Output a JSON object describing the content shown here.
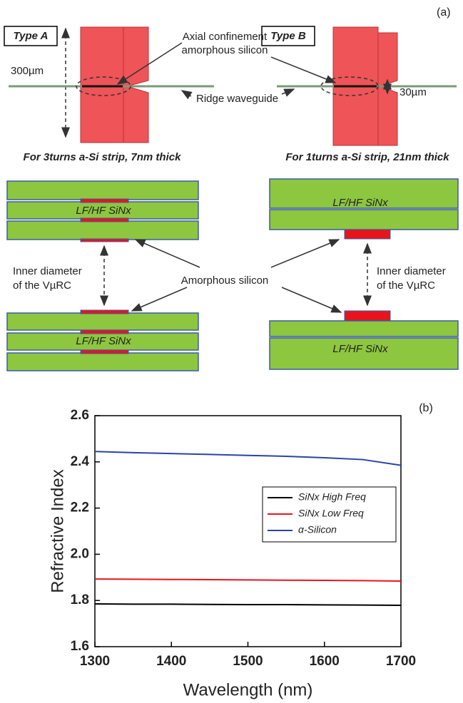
{
  "panel_a": {
    "label": "(a)",
    "type_a": "Type A",
    "type_b": "Type B",
    "dim_a": "300µm",
    "dim_b": "30µm",
    "axial": [
      "Axial confinement",
      "amorphous silicon"
    ],
    "ridge": "Ridge waveguide",
    "caption_a": "For 3turns a-Si strip, 7nm thick",
    "caption_b": "For 1turns a-Si strip, 21nm thick",
    "layer": "LF/HF SiNx",
    "inner": [
      "Inner diameter",
      "of the VµRC"
    ],
    "amorphous": "Amorphous silicon"
  },
  "chart_data": {
    "type": "line",
    "label": "(b)",
    "x_label": "Wavelength (nm)",
    "y_label": "Refractive Index",
    "x": [
      1300,
      1350,
      1400,
      1450,
      1500,
      1550,
      1600,
      1650,
      1700
    ],
    "series": [
      {
        "name": "SiNx High Freq",
        "color": "#000000",
        "values": [
          1.785,
          1.784,
          1.784,
          1.783,
          1.782,
          1.782,
          1.781,
          1.78,
          1.779
        ]
      },
      {
        "name": "SiNx Low Freq",
        "color": "#e8141c",
        "values": [
          1.893,
          1.892,
          1.891,
          1.89,
          1.889,
          1.888,
          1.887,
          1.886,
          1.884
        ]
      },
      {
        "name": "α-Silicon",
        "color": "#2a43a6",
        "values": [
          2.445,
          2.44,
          2.436,
          2.432,
          2.428,
          2.424,
          2.418,
          2.41,
          2.385
        ]
      }
    ],
    "xlim": [
      1300,
      1700
    ],
    "xticks": [
      1300,
      1400,
      1500,
      1600,
      1700
    ],
    "ylim": [
      1.6,
      2.6
    ],
    "yticks": [
      1.6,
      1.8,
      {
        "value": 2.0,
        "label": "2.0"
      },
      2.2,
      2.4,
      2.6
    ]
  }
}
